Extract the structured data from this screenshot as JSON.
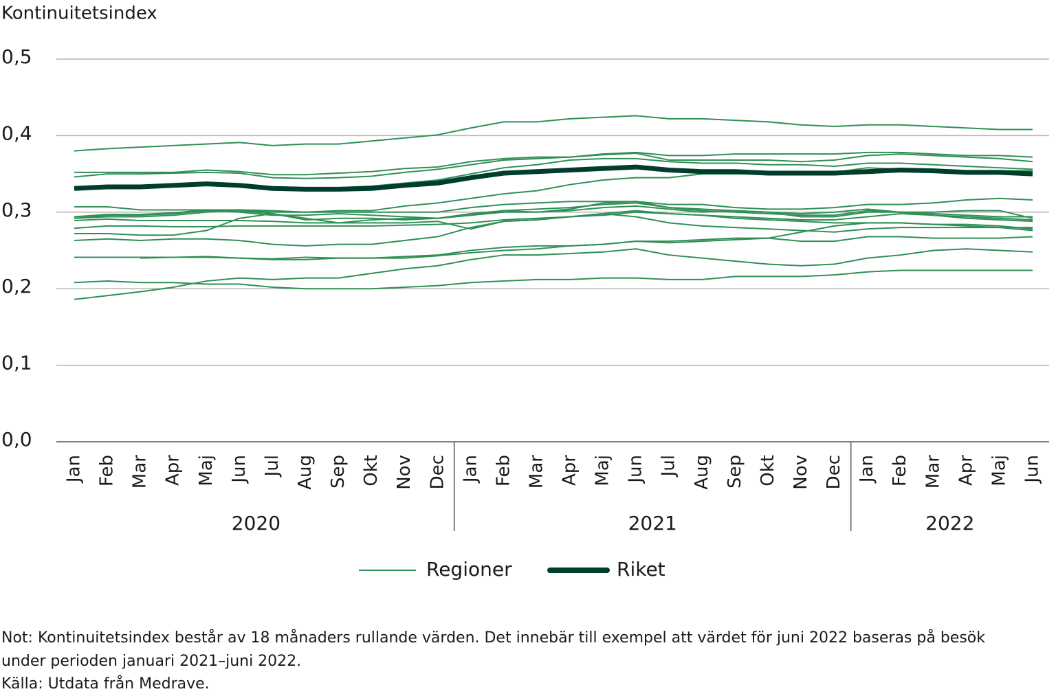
{
  "chart_data": {
    "type": "line",
    "y_label": "Kontinuitetsindex",
    "categories": [
      "Jan",
      "Feb",
      "Mar",
      "Apr",
      "Maj",
      "Jun",
      "Jul",
      "Aug",
      "Sep",
      "Okt",
      "Nov",
      "Dec",
      "Jan",
      "Feb",
      "Mar",
      "Apr",
      "Maj",
      "Jun",
      "Jul",
      "Aug",
      "Sep",
      "Okt",
      "Nov",
      "Dec",
      "Jan",
      "Feb",
      "Mar",
      "Apr",
      "Maj",
      "Jun"
    ],
    "years": [
      "2020",
      "2021",
      "2022"
    ],
    "ylim": [
      0,
      0.5
    ],
    "yticks": [
      {
        "value": 0,
        "label": "0,0"
      },
      {
        "value": 0.1,
        "label": "0,1"
      },
      {
        "value": 0.2,
        "label": "0,2"
      },
      {
        "value": 0.3,
        "label": "0,3"
      },
      {
        "value": 0.4,
        "label": "0,4"
      },
      {
        "value": 0.5,
        "label": "0,5"
      }
    ],
    "grid": true,
    "series": [
      {
        "name": "Regioner",
        "color": "#2f8f55",
        "values": [
          [
            0.38,
            0.383,
            0.385,
            0.387,
            0.389,
            0.391,
            0.387,
            0.389,
            0.389,
            0.393,
            0.397,
            0.401,
            0.41,
            0.418,
            0.418,
            0.422,
            0.424,
            0.426,
            0.422,
            0.422,
            0.42,
            0.418,
            0.414,
            0.412,
            0.414,
            0.414,
            0.412,
            0.41,
            0.408,
            0.408
          ],
          [
            0.352,
            0.352,
            0.352,
            0.352,
            0.355,
            0.353,
            0.349,
            0.349,
            0.351,
            0.353,
            0.357,
            0.359,
            0.366,
            0.37,
            0.372,
            0.372,
            0.376,
            0.378,
            0.374,
            0.374,
            0.376,
            0.376,
            0.376,
            0.376,
            0.378,
            0.378,
            0.376,
            0.374,
            0.374,
            0.372
          ],
          [
            0.346,
            0.35,
            0.35,
            0.351,
            0.352,
            0.351,
            0.345,
            0.344,
            0.345,
            0.347,
            0.352,
            0.356,
            0.362,
            0.368,
            0.37,
            0.372,
            0.375,
            0.377,
            0.368,
            0.368,
            0.368,
            0.368,
            0.366,
            0.368,
            0.374,
            0.376,
            0.374,
            0.372,
            0.37,
            0.366
          ],
          [
            0.329,
            0.334,
            0.334,
            0.336,
            0.338,
            0.336,
            0.333,
            0.332,
            0.332,
            0.334,
            0.338,
            0.342,
            0.35,
            0.358,
            0.362,
            0.368,
            0.37,
            0.37,
            0.366,
            0.364,
            0.364,
            0.362,
            0.362,
            0.36,
            0.364,
            0.364,
            0.362,
            0.36,
            0.358,
            0.356
          ],
          [
            0.307,
            0.307,
            0.303,
            0.303,
            0.303,
            0.303,
            0.302,
            0.3,
            0.302,
            0.302,
            0.308,
            0.312,
            0.318,
            0.324,
            0.328,
            0.336,
            0.342,
            0.345,
            0.345,
            0.35,
            0.35,
            0.35,
            0.35,
            0.352,
            0.358,
            0.356,
            0.354,
            0.354,
            0.354,
            0.354
          ],
          [
            0.294,
            0.297,
            0.297,
            0.299,
            0.303,
            0.302,
            0.3,
            0.3,
            0.3,
            0.3,
            0.3,
            0.3,
            0.306,
            0.31,
            0.312,
            0.314,
            0.314,
            0.314,
            0.31,
            0.31,
            0.306,
            0.304,
            0.304,
            0.306,
            0.31,
            0.31,
            0.312,
            0.316,
            0.318,
            0.316
          ],
          [
            0.292,
            0.296,
            0.296,
            0.298,
            0.302,
            0.3,
            0.296,
            0.296,
            0.298,
            0.296,
            0.294,
            0.292,
            0.296,
            0.302,
            0.3,
            0.302,
            0.306,
            0.308,
            0.304,
            0.3,
            0.302,
            0.3,
            0.294,
            0.294,
            0.3,
            0.3,
            0.3,
            0.302,
            0.302,
            0.292
          ],
          [
            0.289,
            0.291,
            0.289,
            0.289,
            0.289,
            0.289,
            0.288,
            0.286,
            0.286,
            0.29,
            0.292,
            0.292,
            0.296,
            0.3,
            0.3,
            0.304,
            0.312,
            0.314,
            0.306,
            0.302,
            0.3,
            0.298,
            0.296,
            0.296,
            0.302,
            0.3,
            0.296,
            0.294,
            0.292,
            0.29
          ],
          [
            0.279,
            0.282,
            0.282,
            0.281,
            0.281,
            0.282,
            0.282,
            0.282,
            0.282,
            0.282,
            0.283,
            0.284,
            0.286,
            0.29,
            0.292,
            0.294,
            0.296,
            0.3,
            0.298,
            0.296,
            0.292,
            0.29,
            0.288,
            0.286,
            0.286,
            0.286,
            0.284,
            0.282,
            0.28,
            0.276
          ],
          [
            0.272,
            0.272,
            0.27,
            0.27,
            0.276,
            0.292,
            0.298,
            0.292,
            0.286,
            0.286,
            0.286,
            0.288,
            0.278,
            0.288,
            0.29,
            0.294,
            0.298,
            0.294,
            0.286,
            0.282,
            0.28,
            0.278,
            0.276,
            0.274,
            0.278,
            0.28,
            0.28,
            0.28,
            0.28,
            0.28
          ],
          [
            0.263,
            0.265,
            0.263,
            0.265,
            0.265,
            0.263,
            0.258,
            0.256,
            0.258,
            0.258,
            0.263,
            0.268,
            0.28,
            0.288,
            0.29,
            0.294,
            0.298,
            0.302,
            0.298,
            0.296,
            0.294,
            0.292,
            0.29,
            0.29,
            0.294,
            0.298,
            0.296,
            0.292,
            0.29,
            0.288
          ],
          [
            0.241,
            0.241,
            0.241,
            0.241,
            0.242,
            0.24,
            0.238,
            0.238,
            0.24,
            0.24,
            0.242,
            0.244,
            0.25,
            0.254,
            0.256,
            0.256,
            0.258,
            0.262,
            0.26,
            0.262,
            0.264,
            0.266,
            0.274,
            0.282,
            0.286,
            0.286,
            0.284,
            0.284,
            0.282,
            0.278
          ],
          [
            null,
            null,
            0.24,
            0.241,
            0.241,
            0.24,
            0.239,
            0.241,
            0.24,
            0.24,
            0.24,
            0.243,
            0.247,
            0.25,
            0.252,
            0.256,
            0.258,
            0.262,
            0.262,
            0.264,
            0.266,
            0.266,
            0.262,
            0.262,
            0.268,
            0.268,
            0.266,
            0.266,
            0.266,
            0.268
          ],
          [
            0.208,
            0.21,
            0.208,
            0.208,
            0.206,
            0.206,
            0.202,
            0.2,
            0.2,
            0.2,
            0.202,
            0.204,
            0.208,
            0.21,
            0.212,
            0.212,
            0.214,
            0.214,
            0.212,
            0.212,
            0.216,
            0.216,
            0.216,
            0.218,
            0.222,
            0.224,
            0.224,
            0.224,
            0.224,
            0.224
          ],
          [
            0.186,
            0.191,
            0.196,
            0.202,
            0.21,
            0.214,
            0.212,
            0.214,
            0.214,
            0.22,
            0.226,
            0.23,
            0.238,
            0.244,
            0.244,
            0.246,
            0.248,
            0.252,
            0.244,
            0.24,
            0.236,
            0.232,
            0.23,
            0.232,
            0.24,
            0.244,
            0.25,
            0.252,
            0.25,
            0.248
          ],
          [
            0.292,
            0.294,
            0.294,
            0.296,
            0.3,
            0.302,
            0.298,
            0.29,
            0.292,
            0.292,
            0.29,
            0.292,
            0.298,
            0.302,
            0.304,
            0.306,
            0.31,
            0.312,
            0.306,
            0.304,
            0.302,
            0.3,
            0.298,
            0.3,
            0.304,
            0.3,
            0.298,
            0.296,
            0.294,
            0.294
          ]
        ]
      },
      {
        "name": "Riket",
        "color": "#003d2b",
        "values": [
          0.331,
          0.333,
          0.333,
          0.335,
          0.337,
          0.335,
          0.331,
          0.33,
          0.33,
          0.331,
          0.335,
          0.338,
          0.345,
          0.351,
          0.353,
          0.355,
          0.357,
          0.359,
          0.355,
          0.353,
          0.353,
          0.351,
          0.351,
          0.351,
          0.353,
          0.355,
          0.354,
          0.352,
          0.352,
          0.35
        ]
      }
    ],
    "note": "Not: Kontinuitetsindex består av 18 månaders rullande värden. Det innebär till exempel att värdet för juni 2022 baseras på besök under perioden januari 2021–juni 2022.",
    "source": "Källa: Utdata från Medrave."
  }
}
